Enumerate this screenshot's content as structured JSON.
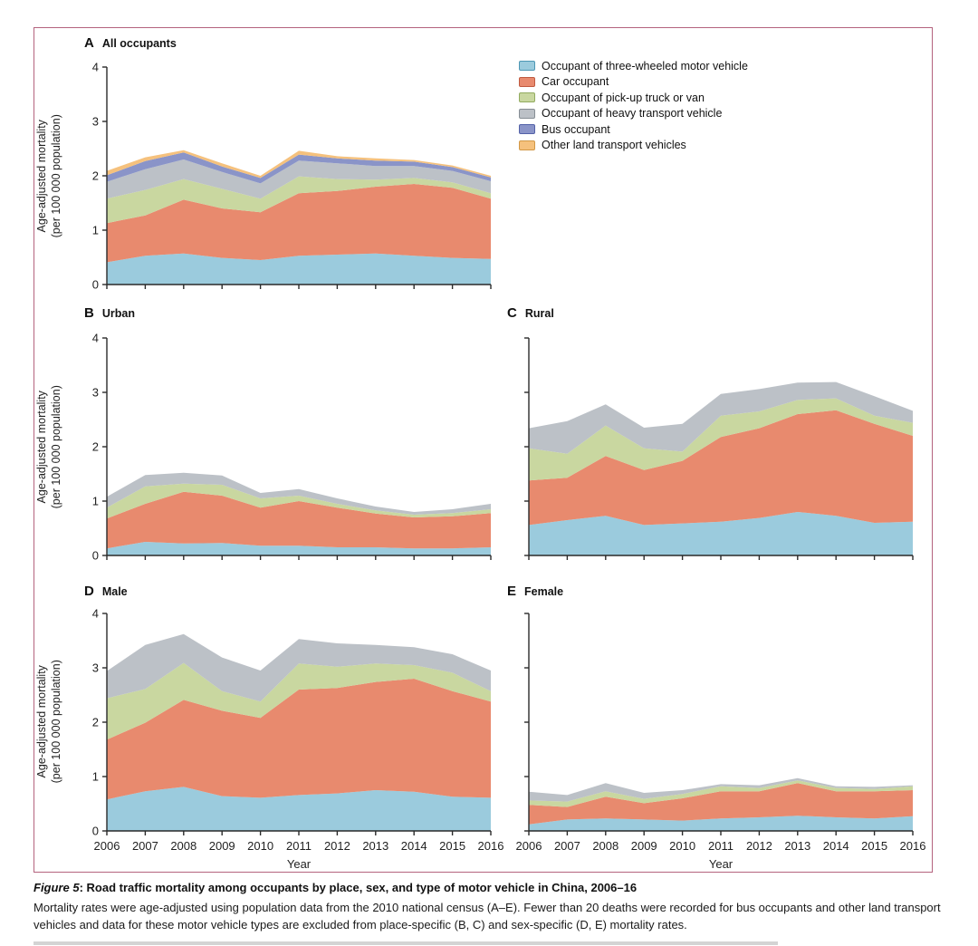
{
  "figure": {
    "caption_label": "Figure 5",
    "caption_title": ": Road traffic mortality among occupants by place, sex, and type of motor vehicle in China, 2006–16",
    "caption_body": "Mortality rates were age-adjusted using population data from the 2010 national census (A–E). Fewer than 20 deaths were recorded for bus occupants and other land transport vehicles and data for these motor vehicle types are excluded from place-specific (B, C) and sex-specific (D, E) mortality rates.",
    "border_color": "#b4637e"
  },
  "axes": {
    "ylabel_line1": "Age-adjusted mortality",
    "ylabel_line2": "(per 100 000 population)",
    "xlabel": "Year",
    "yticks": [
      0,
      1,
      2,
      3,
      4
    ],
    "axis_color": "#2a2a2a"
  },
  "legend": {
    "items": [
      {
        "key": "three_wheeled",
        "label": "Occupant of three-wheeled motor vehicle",
        "color": "#9bcbdd",
        "border": "#4d97b4"
      },
      {
        "key": "car",
        "label": "Car occupant",
        "color": "#e88a6e",
        "border": "#c05a40"
      },
      {
        "key": "pickup",
        "label": "Occupant of pick-up truck or van",
        "color": "#c9d7a0",
        "border": "#92ab5f"
      },
      {
        "key": "heavy",
        "label": "Occupant of heavy transport vehicle",
        "color": "#bcc1c7",
        "border": "#868d94"
      },
      {
        "key": "bus",
        "label": "Bus occupant",
        "color": "#8a94c8",
        "border": "#5361a8"
      },
      {
        "key": "other",
        "label": "Other land transport vehicles",
        "color": "#f5c17d",
        "border": "#d29846"
      }
    ]
  },
  "chart_data": [
    {
      "id": "A",
      "type": "area",
      "stacked": true,
      "panel_letter": "A",
      "title": "All occupants",
      "ylim": [
        0,
        4
      ],
      "show_ylabels": true,
      "show_xlabels": false,
      "grid": false,
      "x": [
        2006,
        2007,
        2008,
        2009,
        2010,
        2011,
        2012,
        2013,
        2014,
        2015,
        2016
      ],
      "series": [
        {
          "key": "three_wheeled",
          "values": [
            0.41,
            0.53,
            0.57,
            0.49,
            0.45,
            0.53,
            0.55,
            0.57,
            0.53,
            0.49,
            0.47
          ]
        },
        {
          "key": "car",
          "values": [
            0.72,
            0.74,
            0.99,
            0.91,
            0.88,
            1.15,
            1.17,
            1.23,
            1.32,
            1.29,
            1.11
          ]
        },
        {
          "key": "pickup",
          "values": [
            0.45,
            0.47,
            0.38,
            0.36,
            0.25,
            0.31,
            0.22,
            0.13,
            0.11,
            0.1,
            0.1
          ]
        },
        {
          "key": "heavy",
          "values": [
            0.31,
            0.38,
            0.36,
            0.31,
            0.28,
            0.29,
            0.29,
            0.25,
            0.22,
            0.21,
            0.22
          ]
        },
        {
          "key": "bus",
          "values": [
            0.12,
            0.15,
            0.13,
            0.1,
            0.1,
            0.11,
            0.09,
            0.1,
            0.08,
            0.07,
            0.07
          ]
        },
        {
          "key": "other",
          "values": [
            0.08,
            0.07,
            0.04,
            0.06,
            0.04,
            0.07,
            0.04,
            0.04,
            0.03,
            0.03,
            0.03
          ]
        }
      ]
    },
    {
      "id": "B",
      "type": "area",
      "stacked": true,
      "panel_letter": "B",
      "title": "Urban",
      "ylim": [
        0,
        4
      ],
      "show_ylabels": true,
      "show_xlabels": false,
      "grid": false,
      "x": [
        2006,
        2007,
        2008,
        2009,
        2010,
        2011,
        2012,
        2013,
        2014,
        2015,
        2016
      ],
      "series": [
        {
          "key": "three_wheeled",
          "values": [
            0.13,
            0.25,
            0.22,
            0.23,
            0.18,
            0.18,
            0.15,
            0.15,
            0.13,
            0.13,
            0.15
          ]
        },
        {
          "key": "car",
          "values": [
            0.55,
            0.7,
            0.95,
            0.87,
            0.7,
            0.82,
            0.73,
            0.62,
            0.57,
            0.59,
            0.63
          ]
        },
        {
          "key": "pickup",
          "values": [
            0.2,
            0.32,
            0.15,
            0.2,
            0.17,
            0.1,
            0.07,
            0.06,
            0.05,
            0.06,
            0.07
          ]
        },
        {
          "key": "heavy",
          "values": [
            0.2,
            0.21,
            0.2,
            0.17,
            0.1,
            0.12,
            0.1,
            0.07,
            0.05,
            0.07,
            0.1
          ]
        }
      ]
    },
    {
      "id": "C",
      "type": "area",
      "stacked": true,
      "panel_letter": "C",
      "title": "Rural",
      "ylim": [
        0,
        4
      ],
      "show_ylabels": false,
      "show_xlabels": false,
      "grid": false,
      "x": [
        2006,
        2007,
        2008,
        2009,
        2010,
        2011,
        2012,
        2013,
        2014,
        2015,
        2016
      ],
      "series": [
        {
          "key": "three_wheeled",
          "values": [
            0.56,
            0.65,
            0.73,
            0.56,
            0.59,
            0.62,
            0.69,
            0.8,
            0.73,
            0.6,
            0.62
          ]
        },
        {
          "key": "car",
          "values": [
            0.82,
            0.78,
            1.1,
            1.01,
            1.15,
            1.56,
            1.65,
            1.8,
            1.94,
            1.82,
            1.58
          ]
        },
        {
          "key": "pickup",
          "values": [
            0.59,
            0.44,
            0.56,
            0.4,
            0.17,
            0.39,
            0.31,
            0.26,
            0.22,
            0.15,
            0.24
          ]
        },
        {
          "key": "heavy",
          "values": [
            0.37,
            0.6,
            0.39,
            0.38,
            0.51,
            0.4,
            0.41,
            0.32,
            0.3,
            0.36,
            0.22
          ]
        }
      ]
    },
    {
      "id": "D",
      "type": "area",
      "stacked": true,
      "panel_letter": "D",
      "title": "Male",
      "ylim": [
        0,
        4
      ],
      "show_ylabels": true,
      "show_xlabels": true,
      "grid": false,
      "x": [
        2006,
        2007,
        2008,
        2009,
        2010,
        2011,
        2012,
        2013,
        2014,
        2015,
        2016
      ],
      "series": [
        {
          "key": "three_wheeled",
          "values": [
            0.58,
            0.73,
            0.81,
            0.64,
            0.61,
            0.66,
            0.69,
            0.75,
            0.72,
            0.63,
            0.61
          ]
        },
        {
          "key": "car",
          "values": [
            1.1,
            1.26,
            1.6,
            1.57,
            1.47,
            1.94,
            1.94,
            1.99,
            2.08,
            1.94,
            1.77
          ]
        },
        {
          "key": "pickup",
          "values": [
            0.76,
            0.62,
            0.68,
            0.36,
            0.3,
            0.48,
            0.39,
            0.34,
            0.25,
            0.34,
            0.19
          ]
        },
        {
          "key": "heavy",
          "values": [
            0.5,
            0.81,
            0.53,
            0.62,
            0.57,
            0.45,
            0.43,
            0.34,
            0.33,
            0.34,
            0.38
          ]
        }
      ]
    },
    {
      "id": "E",
      "type": "area",
      "stacked": true,
      "panel_letter": "E",
      "title": "Female",
      "ylim": [
        0,
        4
      ],
      "show_ylabels": false,
      "show_xlabels": true,
      "grid": false,
      "x": [
        2006,
        2007,
        2008,
        2009,
        2010,
        2011,
        2012,
        2013,
        2014,
        2015,
        2016
      ],
      "series": [
        {
          "key": "three_wheeled",
          "values": [
            0.12,
            0.21,
            0.23,
            0.21,
            0.19,
            0.23,
            0.25,
            0.28,
            0.25,
            0.23,
            0.27
          ]
        },
        {
          "key": "car",
          "values": [
            0.36,
            0.23,
            0.4,
            0.3,
            0.41,
            0.5,
            0.48,
            0.6,
            0.48,
            0.5,
            0.48
          ]
        },
        {
          "key": "pickup",
          "values": [
            0.08,
            0.1,
            0.1,
            0.08,
            0.08,
            0.09,
            0.06,
            0.05,
            0.06,
            0.04,
            0.07
          ]
        },
        {
          "key": "heavy",
          "values": [
            0.16,
            0.12,
            0.15,
            0.11,
            0.07,
            0.04,
            0.05,
            0.04,
            0.03,
            0.04,
            0.02
          ]
        }
      ]
    }
  ]
}
